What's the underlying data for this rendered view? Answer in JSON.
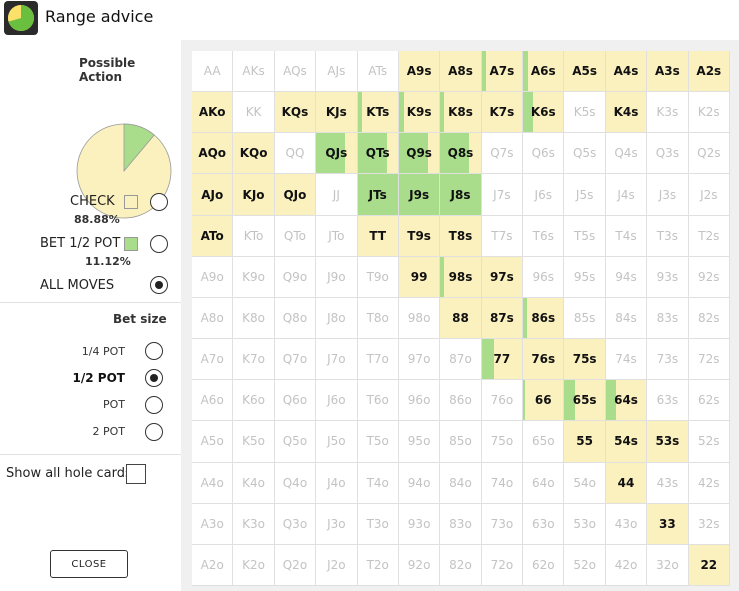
{
  "window": {
    "title": "Range advice"
  },
  "sidebar": {
    "possible_action_title": "Possible Action",
    "actions": [
      {
        "label": "CHECK",
        "pct": "88.88%",
        "color": "#fbf1bf",
        "selected": false
      },
      {
        "label": "BET 1/2 POT",
        "pct": "11.12%",
        "color": "#a9dd8c",
        "selected": false
      },
      {
        "label": "ALL MOVES",
        "selected": true
      }
    ],
    "pie": {
      "check_fraction": 0.8888,
      "bet_fraction": 0.1112
    },
    "bet_size_title": "Bet size",
    "bet_sizes": [
      {
        "label": "1/4 POT",
        "selected": false
      },
      {
        "label": "1/2 POT",
        "selected": true
      },
      {
        "label": "POT",
        "selected": false
      },
      {
        "label": "2 POT",
        "selected": false
      }
    ],
    "show_all_label": "Show all hole cards",
    "show_all_checked": false,
    "close_label": "CLOSE"
  },
  "grid": {
    "ranks": [
      "A",
      "K",
      "Q",
      "J",
      "T",
      "9",
      "8",
      "7",
      "6",
      "5",
      "4",
      "3",
      "2"
    ],
    "colors": {
      "check": "#fbf1bf",
      "bet": "#a9dd8c"
    },
    "active": {
      "A9s": 0,
      "A8s": 0,
      "A7s": 0.1,
      "A6s": 0.12,
      "A5s": 0,
      "A4s": 0,
      "A3s": 0,
      "A2s": 0,
      "AKo": 0,
      "KQs": 0,
      "KJs": 0,
      "KTs": 0.1,
      "K9s": 0.12,
      "K8s": 0.1,
      "K7s": 0,
      "K6s": 0.25,
      "K4s": 0,
      "AQo": 0,
      "KQo": 0,
      "QJs": 0.7,
      "QTs": 0.7,
      "Q9s": 0.7,
      "Q8s": 0.7,
      "AJo": 0,
      "KJo": 0,
      "QJo": 0,
      "JTs": 1,
      "J9s": 1,
      "J8s": 1,
      "ATo": 0,
      "TT": 0,
      "T9s": 0,
      "T8s": 0,
      "99": 0,
      "98s": 0.1,
      "97s": 0,
      "88": 0,
      "87s": 0,
      "86s": 0.1,
      "77": 0.3,
      "76s": 0,
      "75s": 0,
      "66": 0.05,
      "65s": 0.25,
      "64s": 0.25,
      "55": 0,
      "54s": 0,
      "53s": 0,
      "44": 0,
      "33": 0,
      "22": 0
    }
  }
}
